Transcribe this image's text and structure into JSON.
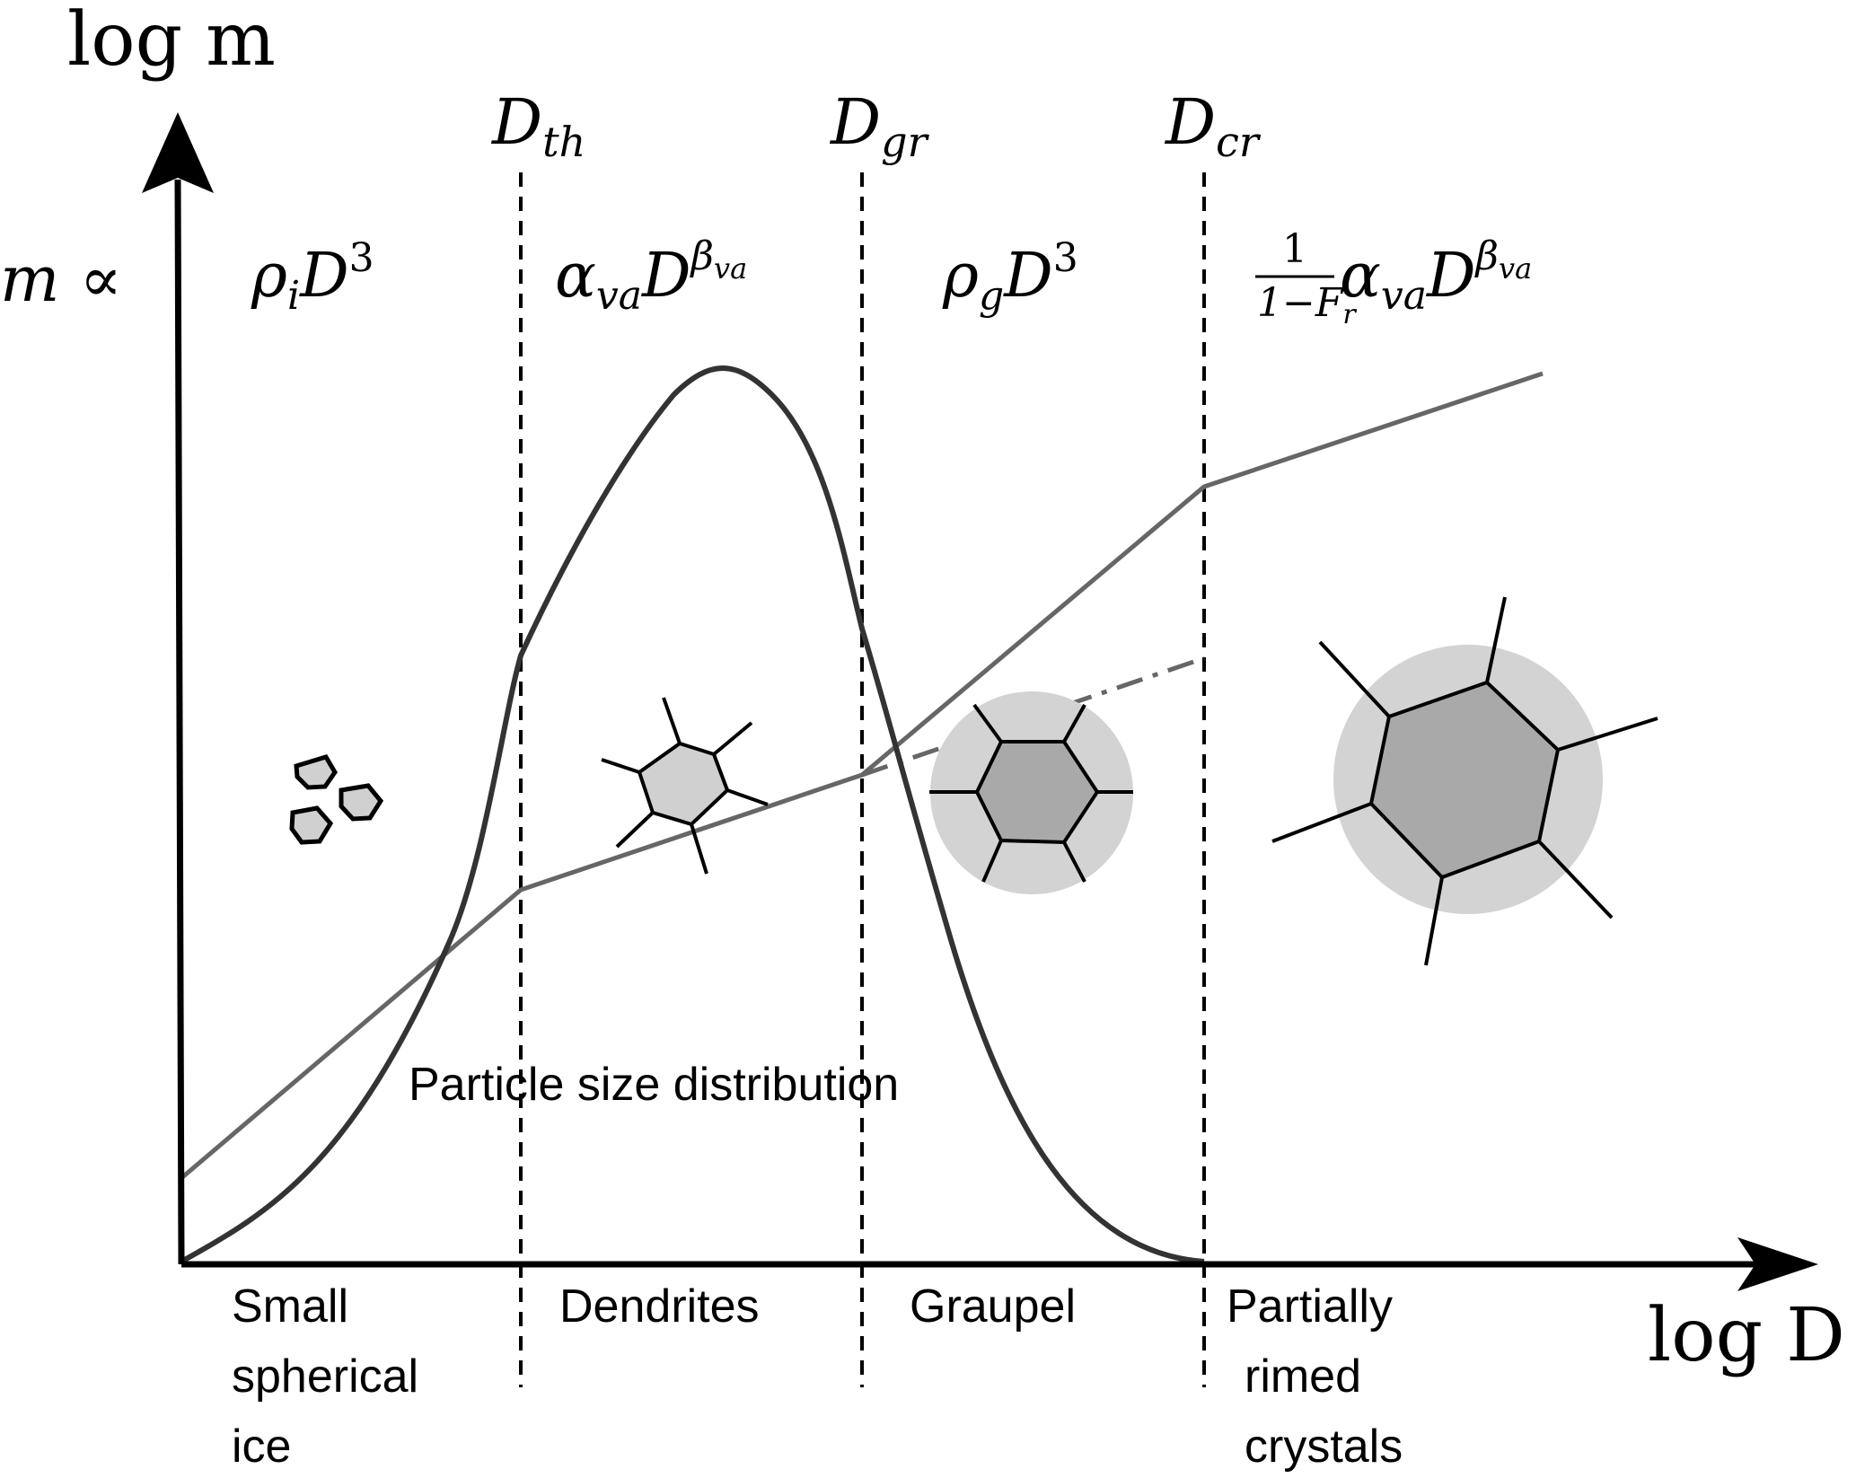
{
  "axes": {
    "y_label": "log m",
    "x_label": "log D",
    "y_prefix": "m ∝"
  },
  "thresholds": [
    {
      "key": "th",
      "label_main": "D",
      "label_sub": "th"
    },
    {
      "key": "gr",
      "label_main": "D",
      "label_sub": "gr"
    },
    {
      "key": "cr",
      "label_main": "D",
      "label_sub": "cr"
    }
  ],
  "mass_laws": {
    "small_ice": {
      "coef": "ρ",
      "coef_sub": "i",
      "base": "D",
      "exp": "3"
    },
    "dendrites": {
      "coef": "α",
      "coef_sub": "va",
      "base": "D",
      "exp": "β",
      "exp_sub": "va"
    },
    "graupel": {
      "coef": "ρ",
      "coef_sub": "g",
      "base": "D",
      "exp": "3"
    },
    "partially_rimed": {
      "frac_num": "1",
      "frac_den": "1−F",
      "frac_den_sub": "r",
      "coef": "α",
      "coef_sub": "va",
      "base": "D",
      "exp": "β",
      "exp_sub": "va"
    }
  },
  "curve_label": "Particle size distribution",
  "categories": [
    {
      "key": "small",
      "lines": [
        "Small",
        "spherical",
        "ice"
      ]
    },
    {
      "key": "dendrites",
      "lines": [
        "Dendrites"
      ]
    },
    {
      "key": "graupel",
      "lines": [
        "Graupel"
      ]
    },
    {
      "key": "rimed",
      "lines": [
        "Partially",
        "rimed",
        "crystals"
      ]
    }
  ],
  "colors": {
    "axis": "#000000",
    "psd_curve": "#333333",
    "mass_line": "#666666",
    "rime_halo": "#d3d3d3",
    "crystal_fill_light": "#d0d0d0",
    "crystal_fill_dark": "#a9a9a9"
  }
}
